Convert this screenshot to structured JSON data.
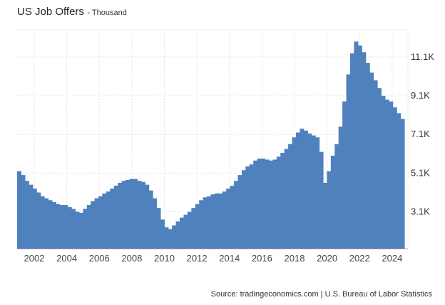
{
  "header": {
    "title": "US Job Offers",
    "subtitle": "- Thousand"
  },
  "source": "Source: tradingeconomics.com | U.S. Bureau of Labor Statistics",
  "colors": {
    "bar": "#4f81bd",
    "grid": "#e3e3e3",
    "baseline": "#9a9a9a"
  },
  "chart_data": {
    "type": "bar",
    "title": "US Job Offers",
    "subtitle": "- Thousand",
    "xlim": [
      2000.95,
      2024.75
    ],
    "ylim": [
      1200,
      12500
    ],
    "grid": true,
    "x_ticks": [
      2002,
      2004,
      2006,
      2008,
      2010,
      2012,
      2014,
      2016,
      2018,
      2020,
      2022,
      2024
    ],
    "x_tick_labels": [
      "2002",
      "2004",
      "2006",
      "2008",
      "2010",
      "2012",
      "2014",
      "2016",
      "2018",
      "2020",
      "2022",
      "2024"
    ],
    "y_ticks": [
      3100,
      5100,
      7100,
      9100,
      11100
    ],
    "y_tick_labels": [
      "3.1K",
      "5.1K",
      "7.1K",
      "9.1K",
      "11.1K"
    ],
    "series": [
      {
        "values": [
          5200,
          5000,
          4700,
          4500,
          4300,
          4100,
          3900,
          3800,
          3700,
          3600,
          3500,
          3450,
          3450,
          3350,
          3250,
          3100,
          3050,
          3250,
          3450,
          3650,
          3800,
          3900,
          4050,
          4150,
          4300,
          4450,
          4600,
          4700,
          4750,
          4800,
          4800,
          4700,
          4650,
          4500,
          4200,
          3800,
          3300,
          2700,
          2300,
          2200,
          2400,
          2600,
          2800,
          2950,
          3100,
          3300,
          3500,
          3700,
          3850,
          3900,
          4000,
          4050,
          4050,
          4150,
          4300,
          4450,
          4700,
          5000,
          5250,
          5450,
          5550,
          5750,
          5850,
          5850,
          5800,
          5750,
          5800,
          5950,
          6150,
          6350,
          6600,
          6950,
          7200,
          7400,
          7300,
          7150,
          7050,
          6950,
          6200,
          4600,
          5200,
          6000,
          6600,
          7500,
          8800,
          10200,
          11300,
          11900,
          11700,
          11350,
          10800,
          10300,
          9900,
          9500,
          9100,
          8900,
          8800,
          8500,
          8200,
          7900
        ]
      }
    ]
  }
}
